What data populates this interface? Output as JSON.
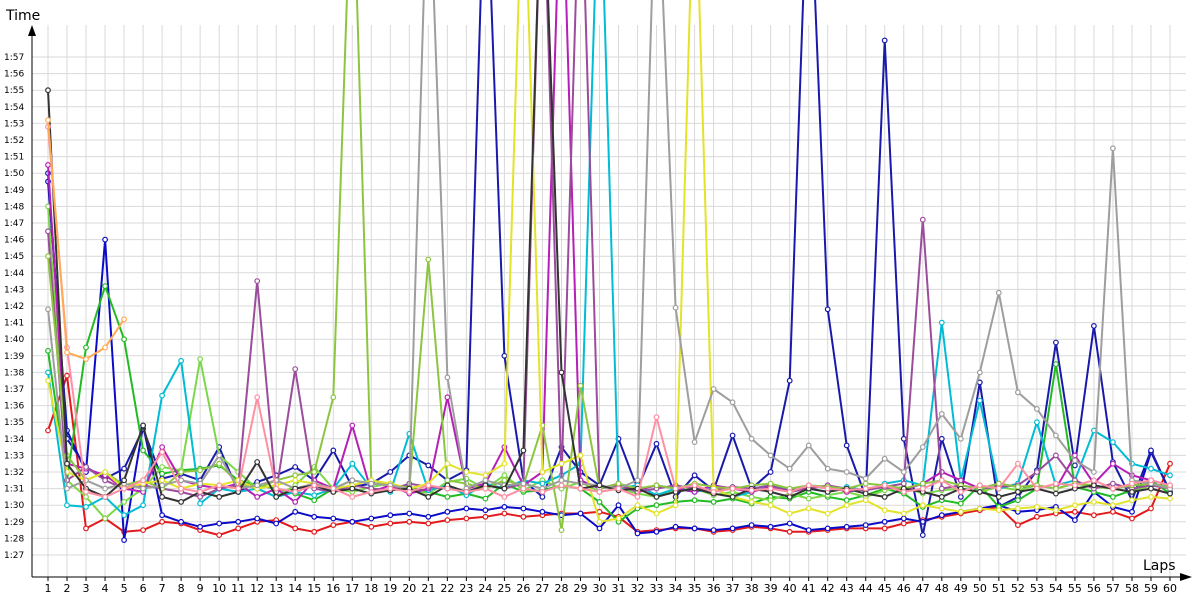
{
  "chart_data": {
    "type": "line",
    "ylabel": "Time",
    "xlabel": "Laps",
    "x": [
      1,
      2,
      3,
      4,
      5,
      6,
      7,
      8,
      9,
      10,
      11,
      12,
      13,
      14,
      15,
      16,
      17,
      18,
      19,
      20,
      21,
      22,
      23,
      24,
      25,
      26,
      27,
      28,
      29,
      30,
      31,
      32,
      33,
      34,
      35,
      36,
      37,
      38,
      39,
      40,
      41,
      42,
      43,
      44,
      45,
      46,
      47,
      48,
      49,
      50,
      51,
      52,
      53,
      54,
      55,
      56,
      57,
      58,
      59,
      60
    ],
    "xlim": [
      1,
      60
    ],
    "ylim_seconds": [
      86,
      118
    ],
    "yticks": [
      "1:27",
      "1:28",
      "1:29",
      "1:30",
      "1:31",
      "1:32",
      "1:33",
      "1:34",
      "1:35",
      "1:36",
      "1:37",
      "1:38",
      "1:39",
      "1:40",
      "1:41",
      "1:42",
      "1:43",
      "1:44",
      "1:45",
      "1:46",
      "1:47",
      "1:48",
      "1:49",
      "1:50",
      "1:51",
      "1:52",
      "1:53",
      "1:54",
      "1:55",
      "1:56",
      "1:57"
    ],
    "ytick_seconds": [
      87,
      88,
      89,
      90,
      91,
      92,
      93,
      94,
      95,
      96,
      97,
      98,
      99,
      100,
      101,
      102,
      103,
      104,
      105,
      106,
      107,
      108,
      109,
      110,
      111,
      112,
      113,
      114,
      115,
      116,
      117
    ],
    "grid": true,
    "legend": "none",
    "series": [
      {
        "color": "#e31a1c",
        "values": [
          94.5,
          97.8,
          88.6,
          89.2,
          88.4,
          88.5,
          89.0,
          88.9,
          88.5,
          88.2,
          88.6,
          89.0,
          89.1,
          88.6,
          88.4,
          88.8,
          89.0,
          88.7,
          88.9,
          89.0,
          88.9,
          89.1,
          89.2,
          89.3,
          89.5,
          89.3,
          89.4,
          89.5,
          89.5,
          89.6,
          89.3,
          88.4,
          88.5,
          88.6,
          88.6,
          88.4,
          88.5,
          88.7,
          88.6,
          88.4,
          88.4,
          88.5,
          88.6,
          88.6,
          88.6,
          88.9,
          89.1,
          89.3,
          89.5,
          89.7,
          89.9,
          88.8,
          89.3,
          89.5,
          89.6,
          89.4,
          89.6,
          89.2,
          89.8,
          92.5
        ]
      },
      {
        "color": "#0b0bc8",
        "values": [
          109.5,
          94.5,
          92.0,
          106.0,
          87.9,
          94.8,
          89.4,
          89.0,
          88.7,
          88.9,
          89.0,
          89.2,
          88.9,
          89.6,
          89.3,
          89.2,
          89.0,
          89.2,
          89.4,
          89.5,
          89.3,
          89.6,
          89.8,
          89.7,
          89.9,
          89.8,
          89.6,
          89.4,
          89.5,
          88.6,
          90.0,
          88.3,
          88.4,
          88.7,
          88.6,
          88.5,
          88.6,
          88.8,
          88.7,
          88.9,
          88.5,
          88.6,
          88.7,
          88.8,
          89.0,
          89.2,
          89.0,
          89.4,
          89.6,
          89.8,
          90.0,
          89.6,
          89.7,
          89.9,
          89.1,
          90.8,
          89.9,
          89.6,
          93.2,
          90.8
        ]
      },
      {
        "color": "#1a1aaa",
        "values": [
          110.0,
          94.0,
          92.3,
          91.6,
          92.2,
          94.6,
          91.6,
          91.9,
          91.5,
          93.5,
          90.8,
          91.4,
          91.8,
          92.3,
          91.5,
          93.3,
          91.1,
          91.3,
          92.0,
          93.0,
          92.4,
          91.5,
          92.1,
          130,
          99.0,
          91.5,
          90.5,
          93.5,
          92.0,
          91.2,
          94.0,
          91.0,
          93.7,
          90.5,
          91.8,
          90.9,
          94.2,
          91.0,
          92.0,
          97.5,
          130,
          101.8,
          93.6,
          90.5,
          118,
          94.0,
          88.2,
          94.0,
          90.5,
          97.4,
          89.9,
          90.5,
          92.1,
          99.8,
          92.4,
          100.8,
          92.6,
          90.3,
          93.3,
          90.8
        ]
      },
      {
        "color": "#22bb22",
        "values": [
          99.3,
          91.5,
          99.5,
          103.2,
          100.0,
          93.3,
          91.9,
          92.1,
          92.2,
          92.4,
          91.5,
          91.2,
          91.0,
          90.7,
          90.3,
          91.0,
          91.5,
          91.3,
          91.2,
          91.1,
          90.8,
          90.5,
          90.7,
          90.4,
          91.3,
          90.8,
          90.9,
          91.2,
          91.0,
          90.2,
          89.0,
          89.8,
          90.0,
          90.2,
          90.3,
          90.2,
          90.4,
          90.1,
          90.5,
          90.4,
          90.8,
          90.5,
          90.3,
          90.6,
          91.0,
          90.7,
          89.9,
          90.3,
          90.1,
          91.2,
          89.9,
          90.3,
          91.0,
          98.5,
          91.1,
          90.8,
          90.5,
          90.9,
          91.5,
          90.7
        ]
      },
      {
        "color": "#7bd848",
        "values": [
          108.0,
          91.5,
          90.5,
          89.2,
          90.2,
          91.0,
          92.3,
          92.1,
          98.8,
          93.0,
          92.0,
          91.0,
          90.5,
          91.2,
          92.3,
          91.0,
          90.8,
          91.1,
          91.3,
          91.0,
          90.7,
          91.4,
          91.6,
          91.0,
          91.8,
          90.9,
          91.5,
          91.0,
          91.4,
          90.8,
          91.0,
          90.7,
          90.5,
          90.9,
          91.0,
          90.6,
          90.8,
          90.5,
          90.3,
          90.7,
          90.4,
          90.6,
          90.8,
          90.5,
          90.9,
          91.1,
          90.7,
          90.9,
          91.0,
          90.8,
          91.1,
          90.9,
          91.2,
          91.0,
          91.3,
          91.1,
          91.0,
          90.8,
          91.2,
          91.0
        ]
      },
      {
        "color": "#00bcd4",
        "values": [
          98.0,
          90.0,
          89.9,
          90.5,
          89.4,
          90.0,
          96.6,
          98.7,
          90.1,
          91.0,
          90.8,
          91.0,
          90.5,
          90.8,
          90.6,
          91.0,
          92.5,
          91.0,
          90.8,
          94.3,
          90.9,
          91.2,
          90.6,
          91.3,
          91.0,
          91.5,
          91.3,
          91.8,
          92.5,
          130,
          91.0,
          91.2,
          90.6,
          91.0,
          90.8,
          91.0,
          90.5,
          90.8,
          91.2,
          90.9,
          91.0,
          90.8,
          91.1,
          90.9,
          91.3,
          91.5,
          91.2,
          101.0,
          91.5,
          96.3,
          91.0,
          91.3,
          95.0,
          91.2,
          91.5,
          94.5,
          93.8,
          92.5,
          92.2,
          91.8
        ]
      },
      {
        "color": "#b51fb5",
        "values": [
          110.5,
          92.5,
          92.2,
          91.8,
          91.0,
          90.8,
          93.5,
          91.5,
          91.2,
          91.0,
          91.3,
          90.5,
          91.0,
          90.2,
          91.5,
          91.0,
          94.8,
          90.8,
          91.2,
          90.7,
          91.0,
          96.5,
          91.0,
          91.3,
          93.5,
          91.2,
          92.0,
          130,
          91.5,
          91.0,
          91.3,
          90.9,
          91.2,
          91.0,
          90.8,
          91.2,
          91.0,
          90.8,
          91.1,
          90.9,
          91.0,
          91.2,
          90.8,
          91.0,
          91.1,
          90.9,
          91.3,
          92.0,
          91.5,
          91.0,
          91.3,
          91.1,
          91.2,
          91.0,
          93.0,
          91.3,
          92.5,
          91.8,
          91.5,
          91.2
        ]
      },
      {
        "color": "#9b4d9b",
        "values": [
          106.5,
          91.5,
          92.3,
          91.5,
          91.0,
          91.2,
          91.0,
          90.8,
          90.5,
          91.0,
          91.2,
          103.5,
          90.8,
          98.2,
          91.0,
          90.8,
          91.2,
          91.0,
          90.9,
          91.3,
          91.1,
          91.0,
          90.8,
          91.2,
          91.0,
          91.3,
          130,
          91.5,
          130,
          91.0,
          91.2,
          90.8,
          91.0,
          91.2,
          91.0,
          90.9,
          91.1,
          91.0,
          91.2,
          90.8,
          91.0,
          91.2,
          91.0,
          90.9,
          91.1,
          91.3,
          107.2,
          91.0,
          91.2,
          91.0,
          91.1,
          91.2,
          92.0,
          93.0,
          91.5,
          91.0,
          91.3,
          91.0,
          91.2,
          91.0
        ]
      },
      {
        "color": "#8cc63f",
        "values": [
          105.0,
          93.0,
          91.5,
          92.0,
          91.2,
          91.5,
          91.0,
          92.0,
          92.1,
          92.5,
          91.3,
          91.0,
          91.5,
          91.8,
          92.0,
          96.5,
          130,
          91.5,
          91.2,
          91.0,
          104.8,
          91.5,
          91.3,
          91.0,
          91.5,
          91.2,
          94.8,
          88.5,
          97.2,
          91.0,
          91.3,
          91.0,
          91.2,
          91.0,
          91.3,
          91.1,
          91.0,
          91.2,
          91.3,
          91.0,
          91.2,
          91.1,
          91.0,
          91.3,
          91.2,
          91.0,
          91.3,
          91.5,
          91.2,
          91.0,
          91.3,
          91.1,
          91.2,
          91.0,
          91.3,
          91.2,
          91.0,
          91.2,
          91.3,
          91.1
        ]
      },
      {
        "color": "#e3e32a",
        "values": [
          97.5,
          92.0,
          91.5,
          92.0,
          91.0,
          91.3,
          91.5,
          91.0,
          91.3,
          91.2,
          91.5,
          91.0,
          91.2,
          91.5,
          91.3,
          91.0,
          91.2,
          91.5,
          91.3,
          91.0,
          91.3,
          92.5,
          92.0,
          91.8,
          92.5,
          130,
          92.0,
          92.5,
          93.0,
          89.0,
          89.2,
          90.0,
          89.5,
          90.0,
          130,
          91.0,
          90.5,
          90.2,
          90.0,
          89.5,
          89.8,
          89.5,
          90.0,
          90.3,
          89.7,
          89.5,
          90.0,
          89.8,
          89.6,
          89.8,
          89.7,
          89.8,
          89.9,
          89.7,
          90.0,
          90.2,
          90.0,
          90.3,
          90.5,
          90.4
        ]
      },
      {
        "color": "#9e9e9e",
        "values": [
          101.8,
          91.0,
          91.5,
          91.0,
          91.3,
          91.0,
          91.2,
          91.5,
          91.3,
          93.0,
          91.0,
          91.2,
          91.5,
          91.0,
          91.3,
          91.0,
          91.5,
          91.3,
          91.2,
          91.0,
          130,
          97.7,
          91.0,
          91.5,
          91.2,
          91.3,
          91.0,
          91.5,
          91.3,
          91.2,
          91.0,
          91.5,
          130,
          101.9,
          93.8,
          97.0,
          96.2,
          94.0,
          93.0,
          92.2,
          93.6,
          92.2,
          92.0,
          91.6,
          92.8,
          92.0,
          93.5,
          95.5,
          94.0,
          98.0,
          102.8,
          96.8,
          95.8,
          94.2,
          92.7,
          92.0,
          111.5,
          91.5,
          91.3,
          91.0
        ]
      },
      {
        "color": "#333333",
        "values": [
          115.0,
          92.5,
          91.0,
          90.5,
          91.5,
          94.8,
          90.5,
          90.2,
          90.8,
          90.5,
          90.8,
          92.6,
          90.5,
          91.0,
          91.2,
          90.8,
          91.0,
          90.7,
          90.9,
          91.0,
          90.5,
          91.2,
          90.8,
          91.2,
          91.0,
          93.3,
          130,
          98.0,
          91.0,
          91.2,
          90.9,
          91.0,
          90.5,
          90.8,
          91.0,
          90.7,
          90.5,
          91.0,
          90.8,
          90.5,
          91.0,
          90.8,
          91.0,
          90.7,
          90.5,
          91.0,
          90.8,
          90.5,
          91.0,
          90.8,
          90.5,
          90.8,
          91.0,
          90.7,
          91.0,
          91.2,
          91.0,
          90.8,
          91.0,
          90.7
        ]
      },
      {
        "color": "#ff8fa3",
        "values": [
          112.8,
          99.5,
          90.8,
          90.5,
          91.0,
          91.5,
          93.2,
          91.0,
          90.8,
          91.2,
          91.0,
          96.5,
          91.0,
          90.8,
          91.2,
          91.0,
          90.5,
          90.8,
          91.0,
          90.8,
          91.2,
          91.0,
          90.8,
          91.0,
          90.5,
          91.0,
          90.8,
          91.2,
          91.0,
          90.8,
          91.0,
          90.5,
          95.3,
          91.0,
          91.2,
          90.8,
          91.0,
          90.9,
          91.0,
          90.8,
          91.2,
          91.0,
          90.9,
          91.0,
          91.2,
          90.8,
          91.0,
          91.5,
          90.8,
          91.2,
          91.0,
          92.5,
          91.0,
          91.3,
          91.2,
          91.5,
          91.0,
          91.3,
          91.5,
          91.2
        ]
      },
      {
        "color": "#ffaa55",
        "values": [
          113.2,
          99.2,
          98.8,
          99.5,
          101.2,
          null,
          null,
          null,
          null,
          null,
          null,
          null,
          null,
          null,
          null,
          null,
          null,
          null,
          null,
          null,
          null,
          null,
          null,
          null,
          null,
          null,
          null,
          null,
          null,
          null,
          null,
          null,
          null,
          null,
          null,
          null,
          null,
          null,
          null,
          null,
          null,
          null,
          null,
          null,
          null,
          null,
          null,
          null,
          null,
          null,
          null,
          null,
          null,
          null,
          null,
          null,
          null,
          null,
          null,
          null
        ]
      }
    ]
  }
}
